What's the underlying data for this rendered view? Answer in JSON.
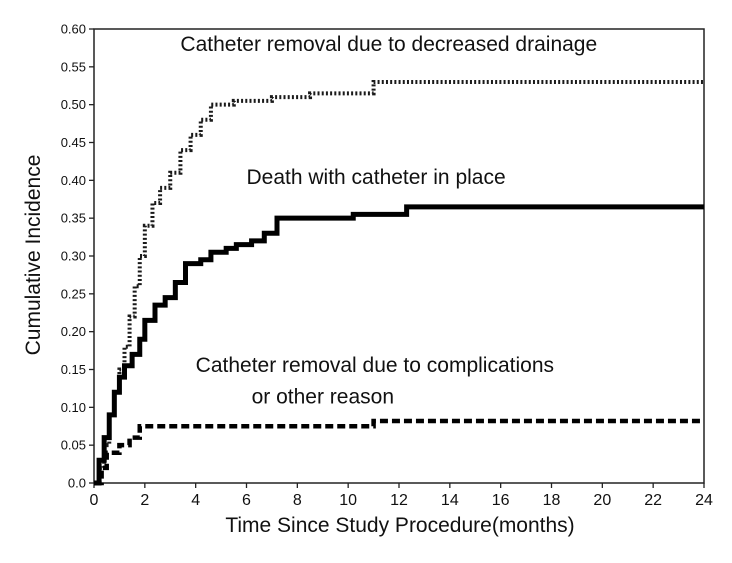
{
  "chart_data": {
    "type": "line",
    "xlabel": "Time Since Study Procedure(months)",
    "ylabel": "Cumulative Incidence",
    "xlim": [
      0,
      24
    ],
    "ylim": [
      0,
      0.6
    ],
    "xticks": [
      "0",
      "2",
      "4",
      "6",
      "8",
      "10",
      "12",
      "14",
      "16",
      "18",
      "20",
      "22",
      "24"
    ],
    "yticks": [
      "0.0",
      "0.05",
      "0.10",
      "0.15",
      "0.20",
      "0.25",
      "0.30",
      "0.35",
      "0.40",
      "0.45",
      "0.50",
      "0.55",
      "0.60"
    ],
    "grid": false,
    "annotations": [
      {
        "text": "Catheter removal due to decreased drainage",
        "x": 3.4,
        "y": 0.571
      },
      {
        "text": "Death with catheter in place",
        "x": 6.0,
        "y": 0.395
      },
      {
        "text": "Catheter removal due to complications",
        "x": 4.0,
        "y": 0.147
      },
      {
        "text": "or other reason",
        "x": 6.2,
        "y": 0.105
      }
    ],
    "series": [
      {
        "style": "dotted",
        "color": "#1a1a1a",
        "points": [
          [
            0,
            0
          ],
          [
            0.2,
            0.02
          ],
          [
            0.4,
            0.05
          ],
          [
            0.6,
            0.09
          ],
          [
            0.8,
            0.12
          ],
          [
            1.0,
            0.15
          ],
          [
            1.2,
            0.18
          ],
          [
            1.4,
            0.22
          ],
          [
            1.6,
            0.26
          ],
          [
            1.8,
            0.3
          ],
          [
            2.0,
            0.34
          ],
          [
            2.3,
            0.37
          ],
          [
            2.6,
            0.39
          ],
          [
            3.0,
            0.41
          ],
          [
            3.4,
            0.44
          ],
          [
            3.8,
            0.46
          ],
          [
            4.2,
            0.48
          ],
          [
            4.6,
            0.5
          ],
          [
            5.0,
            0.5
          ],
          [
            5.5,
            0.505
          ],
          [
            6.5,
            0.505
          ],
          [
            7.0,
            0.51
          ],
          [
            8.5,
            0.515
          ],
          [
            11.0,
            0.53
          ],
          [
            24.0,
            0.53
          ]
        ]
      },
      {
        "style": "solid",
        "color": "#000000",
        "points": [
          [
            0,
            0
          ],
          [
            0.2,
            0.03
          ],
          [
            0.4,
            0.06
          ],
          [
            0.6,
            0.09
          ],
          [
            0.8,
            0.12
          ],
          [
            1.0,
            0.14
          ],
          [
            1.2,
            0.155
          ],
          [
            1.5,
            0.17
          ],
          [
            1.8,
            0.19
          ],
          [
            2.0,
            0.215
          ],
          [
            2.4,
            0.235
          ],
          [
            2.8,
            0.245
          ],
          [
            3.2,
            0.265
          ],
          [
            3.6,
            0.29
          ],
          [
            4.2,
            0.295
          ],
          [
            4.6,
            0.305
          ],
          [
            5.2,
            0.31
          ],
          [
            5.6,
            0.315
          ],
          [
            6.2,
            0.32
          ],
          [
            6.7,
            0.33
          ],
          [
            7.2,
            0.35
          ],
          [
            9.8,
            0.35
          ],
          [
            10.2,
            0.355
          ],
          [
            12.0,
            0.355
          ],
          [
            12.3,
            0.365
          ],
          [
            24.0,
            0.365
          ]
        ]
      },
      {
        "style": "dashed",
        "color": "#000000",
        "points": [
          [
            0,
            0
          ],
          [
            0.3,
            0.02
          ],
          [
            0.5,
            0.04
          ],
          [
            1.0,
            0.05
          ],
          [
            1.4,
            0.06
          ],
          [
            1.8,
            0.075
          ],
          [
            10.6,
            0.075
          ],
          [
            11.0,
            0.082
          ],
          [
            24.0,
            0.082
          ]
        ]
      }
    ]
  }
}
